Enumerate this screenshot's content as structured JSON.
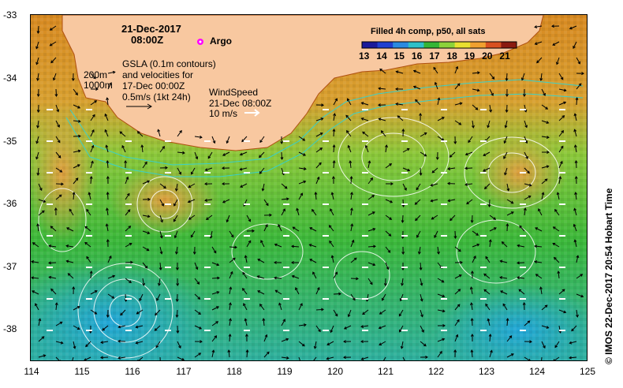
{
  "map": {
    "date_line1": "21-Dec-2017",
    "date_line2": "08:00Z",
    "argo_label": "Argo",
    "gsla_lines": [
      "GSLA (0.1m contours)",
      "and velocities for",
      "17-Dec 00:00Z",
      "0.5m/s (1kt 24h)"
    ],
    "depth_labels": [
      "200m",
      "1000m"
    ],
    "wind_lines": [
      "WindSpeed",
      "21-Dec 08:00Z",
      "10 m/s"
    ],
    "colorbar_title": "Filled 4h comp, p50, all sats",
    "colorbar_ticks": [
      "13",
      "14",
      "15",
      "16",
      "17",
      "18",
      "19",
      "20",
      "21"
    ],
    "credit": "© IMOS 22-Dec-2017 20:54 Hobart Time",
    "colors": {
      "land": "#f8c8a0",
      "sst_warm": "#e08a20",
      "sst_mid": "#9ad23a",
      "sst_green": "#35b535",
      "sst_cool": "#2ec0c8",
      "argo": "#ff00ff"
    }
  },
  "axes": {
    "lat_ticks": [
      "-33",
      "-34",
      "-35",
      "-36",
      "-37",
      "-38"
    ],
    "lon_ticks": [
      "114",
      "115",
      "116",
      "117",
      "118",
      "119",
      "120",
      "121",
      "122",
      "123",
      "124",
      "125"
    ]
  }
}
